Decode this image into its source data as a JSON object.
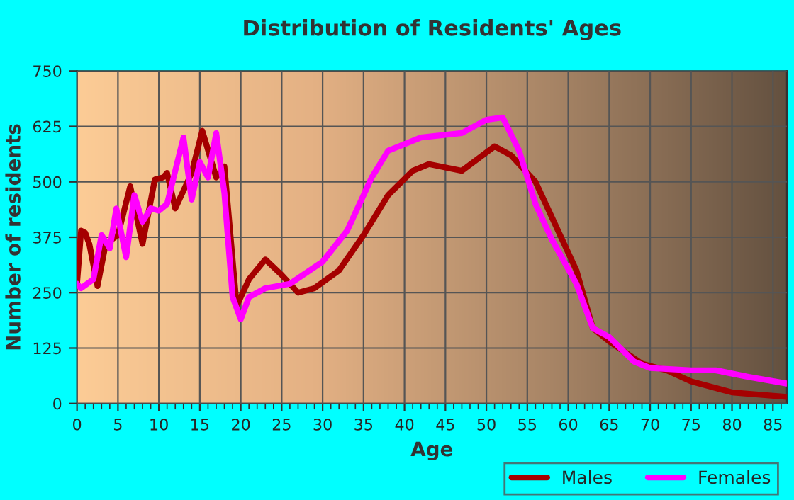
{
  "chart_data": {
    "type": "line",
    "title": "Distribution of Residents' Ages",
    "xlabel": "Age",
    "ylabel": "Number of residents",
    "xlim": [
      0,
      86.7
    ],
    "xticks": [
      0,
      5,
      10,
      15,
      20,
      25,
      30,
      35,
      40,
      45,
      50,
      55,
      60,
      65,
      70,
      75,
      80,
      85
    ],
    "ylim": [
      0,
      750
    ],
    "yticks": [
      0,
      125,
      250,
      375,
      500,
      625,
      750
    ],
    "grid": true,
    "legend": "bottom right",
    "series": [
      {
        "name": "Males",
        "color": "#a50000",
        "x": [
          0,
          0.5,
          1,
          1.5,
          2.5,
          3.5,
          5,
          6.5,
          8,
          9.5,
          10.5,
          11,
          12,
          14,
          15.3,
          17,
          18,
          19.5,
          21,
          23,
          25,
          27,
          29,
          32,
          35,
          38,
          41,
          43,
          47,
          51,
          53,
          56,
          58,
          61,
          63,
          65,
          69,
          72,
          75,
          80,
          86.7
        ],
        "values": [
          270,
          390,
          385,
          360,
          265,
          360,
          380,
          490,
          360,
          505,
          510,
          520,
          440,
          520,
          615,
          510,
          535,
          220,
          280,
          325,
          290,
          250,
          260,
          300,
          380,
          470,
          525,
          540,
          525,
          580,
          560,
          500,
          420,
          300,
          170,
          140,
          90,
          75,
          50,
          25,
          15
        ]
      },
      {
        "name": "Females",
        "color": "#ff00ff",
        "x": [
          0,
          0.5,
          2,
          3,
          4,
          4.8,
          6,
          7,
          8,
          9,
          10,
          11,
          13,
          14,
          15,
          16,
          17,
          18,
          19,
          20,
          21,
          23,
          26,
          30,
          33,
          36,
          38,
          42,
          47,
          50,
          52,
          54,
          56,
          58,
          61,
          63,
          65,
          68,
          70,
          75,
          78,
          82,
          86.7
        ],
        "values": [
          270,
          260,
          280,
          380,
          350,
          440,
          330,
          470,
          410,
          440,
          435,
          450,
          600,
          460,
          545,
          510,
          610,
          475,
          240,
          190,
          240,
          260,
          270,
          320,
          390,
          510,
          570,
          600,
          610,
          640,
          645,
          570,
          450,
          370,
          270,
          170,
          150,
          95,
          80,
          75,
          75,
          60,
          45
        ]
      }
    ]
  }
}
